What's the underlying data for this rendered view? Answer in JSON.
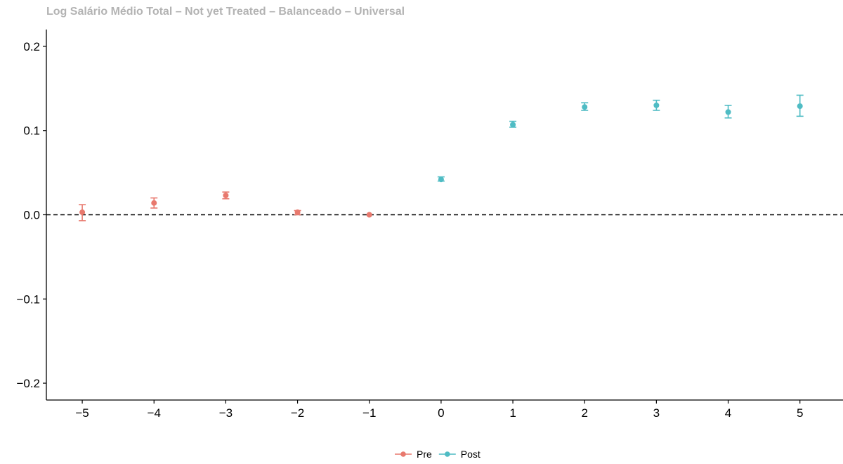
{
  "chart_data": {
    "type": "scatter",
    "title": "Log Salário Médio Total – Not yet Treated – Balanceado – Universal",
    "xlabel": "",
    "ylabel": "",
    "x": [
      -5,
      -4,
      -3,
      -2,
      -1,
      0,
      1,
      2,
      3,
      4,
      5
    ],
    "xticks": [
      -5,
      -4,
      -3,
      -2,
      -1,
      0,
      1,
      2,
      3,
      4,
      5
    ],
    "xtick_labels": [
      "−5",
      "−4",
      "−3",
      "−2",
      "−1",
      "0",
      "1",
      "2",
      "3",
      "4",
      "5"
    ],
    "xlim": [
      -5.5,
      5.6
    ],
    "yticks": [
      0.2,
      0.1,
      0.0,
      -0.1,
      -0.2
    ],
    "ytick_labels": [
      "0.2",
      "0.1",
      "0.0",
      "−0.1",
      "−0.2"
    ],
    "ylim": [
      -0.22,
      0.22
    ],
    "reference_line": {
      "y": 0,
      "style": "dashed",
      "color": "#000000"
    },
    "grid": false,
    "legend_position": "bottom",
    "series": [
      {
        "name": "Pre",
        "color": "#E8796E",
        "points": [
          {
            "x": -5,
            "y": 0.003,
            "lo": -0.007,
            "hi": 0.012
          },
          {
            "x": -4,
            "y": 0.014,
            "lo": 0.008,
            "hi": 0.02
          },
          {
            "x": -3,
            "y": 0.023,
            "lo": 0.019,
            "hi": 0.027
          },
          {
            "x": -2,
            "y": 0.003,
            "lo": 0.0,
            "hi": 0.005
          },
          {
            "x": -1,
            "y": 0.0,
            "lo": 0.0,
            "hi": 0.0
          }
        ]
      },
      {
        "name": "Post",
        "color": "#4FBCC4",
        "points": [
          {
            "x": 0,
            "y": 0.042,
            "lo": 0.04,
            "hi": 0.045
          },
          {
            "x": 1,
            "y": 0.107,
            "lo": 0.104,
            "hi": 0.111
          },
          {
            "x": 2,
            "y": 0.128,
            "lo": 0.124,
            "hi": 0.133
          },
          {
            "x": 3,
            "y": 0.13,
            "lo": 0.124,
            "hi": 0.136
          },
          {
            "x": 4,
            "y": 0.122,
            "lo": 0.115,
            "hi": 0.13
          },
          {
            "x": 5,
            "y": 0.129,
            "lo": 0.117,
            "hi": 0.142
          }
        ]
      }
    ]
  }
}
